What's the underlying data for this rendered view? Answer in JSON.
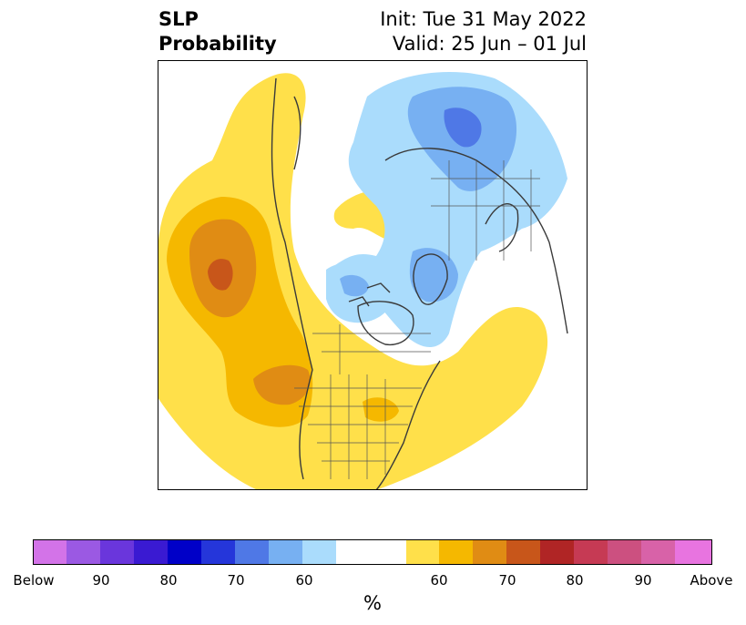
{
  "title": {
    "variable": "SLP",
    "product": "Probability",
    "init": "Init: Tue 31 May 2022",
    "valid": "Valid: 25 Jun – 01 Jul"
  },
  "colorbar": {
    "unit": "%",
    "colors": [
      "#d373e8",
      "#9b59e3",
      "#6a36dc",
      "#3a1ad2",
      "#0000c8",
      "#2536da",
      "#4f78e6",
      "#77b0f2",
      "#aadcfc",
      "#ffffff",
      "#ffffff",
      "#ffe04a",
      "#f5b800",
      "#e08c14",
      "#c8561a",
      "#b02525",
      "#c63a54",
      "#cc5080",
      "#d862a8",
      "#e874e0"
    ],
    "tick_labels": [
      "Below",
      "90",
      "80",
      "70",
      "60",
      "60",
      "70",
      "80",
      "90",
      "Above"
    ]
  },
  "map": {
    "above_colors": {
      "p40": "#ffe04a",
      "p50": "#f5b800",
      "p60": "#e08c14",
      "p70": "#c8561a"
    },
    "below_colors": {
      "p40": "#aadcfc",
      "p50": "#77b0f2",
      "p60": "#4f78e6"
    }
  }
}
